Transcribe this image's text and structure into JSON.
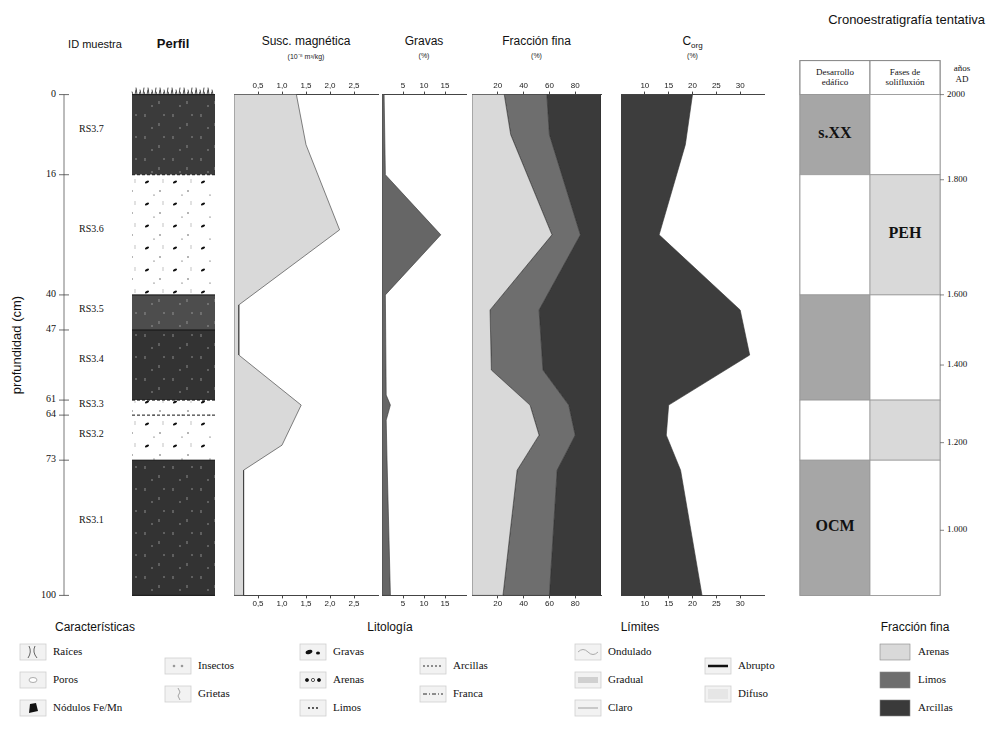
{
  "title": "Cronoestratigrafía tentativa",
  "sample_header": "ID muestra",
  "profile_header": "Perfil",
  "depth_axis": {
    "label": "profundidad (cm)",
    "ylim": [
      0,
      100
    ],
    "yticks": [
      0,
      16,
      40,
      47,
      61,
      64,
      73,
      100
    ]
  },
  "samples": [
    {
      "id": "RS3.7",
      "depth": 7
    },
    {
      "id": "RS3.6",
      "depth": 27
    },
    {
      "id": "RS3.5",
      "depth": 43
    },
    {
      "id": "RS3.4",
      "depth": 53
    },
    {
      "id": "RS3.3",
      "depth": 62
    },
    {
      "id": "RS3.2",
      "depth": 68
    },
    {
      "id": "RS3.1",
      "depth": 85
    }
  ],
  "profile": [
    {
      "top": 0,
      "bottom": 16,
      "color": "#3b3b3b"
    },
    {
      "top": 16,
      "bottom": 40,
      "color": "#ffffff"
    },
    {
      "top": 40,
      "bottom": 47,
      "color": "#4d4d4d"
    },
    {
      "top": 47,
      "bottom": 61,
      "color": "#333333"
    },
    {
      "top": 61,
      "bottom": 64,
      "color": "#ffffff"
    },
    {
      "top": 64,
      "bottom": 73,
      "color": "#ffffff"
    },
    {
      "top": 73,
      "bottom": 100,
      "color": "#333333"
    }
  ],
  "chart_data": [
    {
      "type": "area",
      "title": "Susc. magnética",
      "subtitle": "(10⁻⁸ m³/kg)",
      "y": [
        0,
        10,
        27,
        42,
        52,
        62,
        70,
        75,
        100
      ],
      "values": [
        1.3,
        1.5,
        2.2,
        0.1,
        0.1,
        1.4,
        1.0,
        0.2,
        0.2
      ],
      "color": "#d9d9d9",
      "xlim": [
        0,
        3
      ],
      "xticks": [
        {
          "value": 0.5,
          "label": "0,5"
        },
        {
          "value": 1,
          "label": "1,0"
        },
        {
          "value": 1.5,
          "label": "1,5"
        },
        {
          "value": 2,
          "label": "2,0"
        },
        {
          "value": 2.5,
          "label": "2,5"
        }
      ],
      "ylim": [
        0,
        100
      ],
      "grid": false,
      "tick_labels": "x"
    },
    {
      "type": "area",
      "title": "Gravas",
      "subtitle": "(%)",
      "y": [
        0,
        16,
        28,
        40,
        60,
        62,
        65,
        73,
        100
      ],
      "values": [
        0.5,
        0.8,
        14,
        0.8,
        1,
        2,
        1,
        1.2,
        2
      ],
      "color": "#666666",
      "xlim": [
        0,
        20
      ],
      "xticks": [
        5,
        10,
        15
      ],
      "ylim": [
        0,
        100
      ],
      "grid": false,
      "tick_labels": "x"
    },
    {
      "type": "area",
      "title": "Fracción fina",
      "subtitle": "(%)",
      "stacked": true,
      "legend": "bottom",
      "y": [
        0,
        8,
        28,
        43,
        55,
        62,
        68,
        75,
        100
      ],
      "series": [
        {
          "name": "Arenas",
          "color": "#d9d9d9",
          "values": [
            25,
            30,
            62,
            14,
            15,
            45,
            52,
            35,
            24
          ]
        },
        {
          "name": "Limos",
          "color": "#6e6e6e",
          "values": [
            33,
            30,
            22,
            38,
            40,
            30,
            28,
            31,
            36
          ]
        },
        {
          "name": "Arcillas",
          "color": "#3a3a3a",
          "values": [
            42,
            40,
            16,
            48,
            45,
            25,
            20,
            34,
            40
          ]
        }
      ],
      "xlim": [
        0,
        100
      ],
      "xticks": [
        20,
        40,
        60,
        80
      ],
      "ylim": [
        0,
        100
      ],
      "grid": false,
      "tick_labels": "x"
    },
    {
      "type": "area",
      "title": "C",
      "title_subscript": "org",
      "subtitle": "(%)",
      "y": [
        0,
        10,
        28,
        43,
        52,
        62,
        68,
        75,
        100
      ],
      "values": [
        20,
        18.5,
        13,
        30,
        32,
        15,
        14.5,
        17.5,
        22
      ],
      "color": "#3d3d3d",
      "xlim": [
        5,
        35
      ],
      "xticks": [
        10,
        15,
        20,
        25,
        30
      ],
      "ylim": [
        0,
        100
      ],
      "grid": false,
      "tick_labels": "x"
    }
  ],
  "chronostratigraphy": {
    "columns": [
      "Desarrollo edáfico",
      "Fases de solifluxión"
    ],
    "axis_label": "años AD",
    "ticks": [
      {
        "value": 2000,
        "label": "2000",
        "depth": 0
      },
      {
        "value": 1800,
        "label": "1.800",
        "depth": 17
      },
      {
        "value": 1600,
        "label": "1.600",
        "depth": 40
      },
      {
        "value": 1400,
        "label": "1.400",
        "depth": 54
      },
      {
        "value": 1200,
        "label": "1.200",
        "depth": 69.5
      },
      {
        "value": 1000,
        "label": "1.000",
        "depth": 87
      }
    ],
    "units": [
      {
        "column": 0,
        "top": 0,
        "bottom": 16,
        "color": "#a6a6a6",
        "label": "s.XX"
      },
      {
        "column": 0,
        "top": 16,
        "bottom": 40,
        "color": "#ffffff"
      },
      {
        "column": 0,
        "top": 40,
        "bottom": 61,
        "color": "#a6a6a6"
      },
      {
        "column": 0,
        "top": 61,
        "bottom": 73,
        "color": "#ffffff"
      },
      {
        "column": 0,
        "top": 73,
        "bottom": 100,
        "color": "#a6a6a6",
        "label": "OCM"
      },
      {
        "column": 1,
        "top": 0,
        "bottom": 16,
        "color": "#ffffff"
      },
      {
        "column": 1,
        "top": 16,
        "bottom": 40,
        "color": "#d9d9d9",
        "label": "PEH"
      },
      {
        "column": 1,
        "top": 40,
        "bottom": 61,
        "color": "#ffffff"
      },
      {
        "column": 1,
        "top": 61,
        "bottom": 73,
        "color": "#d9d9d9"
      },
      {
        "column": 1,
        "top": 73,
        "bottom": 100,
        "color": "#ffffff"
      }
    ]
  },
  "legend": {
    "groups": [
      {
        "title": "Características",
        "items": [
          "Raíces",
          "Poros",
          "Nódulos Fe/Mn",
          "Insectos",
          "Grietas"
        ]
      },
      {
        "title": "Litología",
        "items": [
          "Gravas",
          "Arenas",
          "Limos",
          "Arcillas",
          "Franca"
        ]
      },
      {
        "title": "Límites",
        "items": [
          "Ondulado",
          "Gradual",
          "Claro",
          "Abrupto",
          "Difuso"
        ]
      }
    ],
    "fine_fraction_title": "Fracción fina"
  }
}
